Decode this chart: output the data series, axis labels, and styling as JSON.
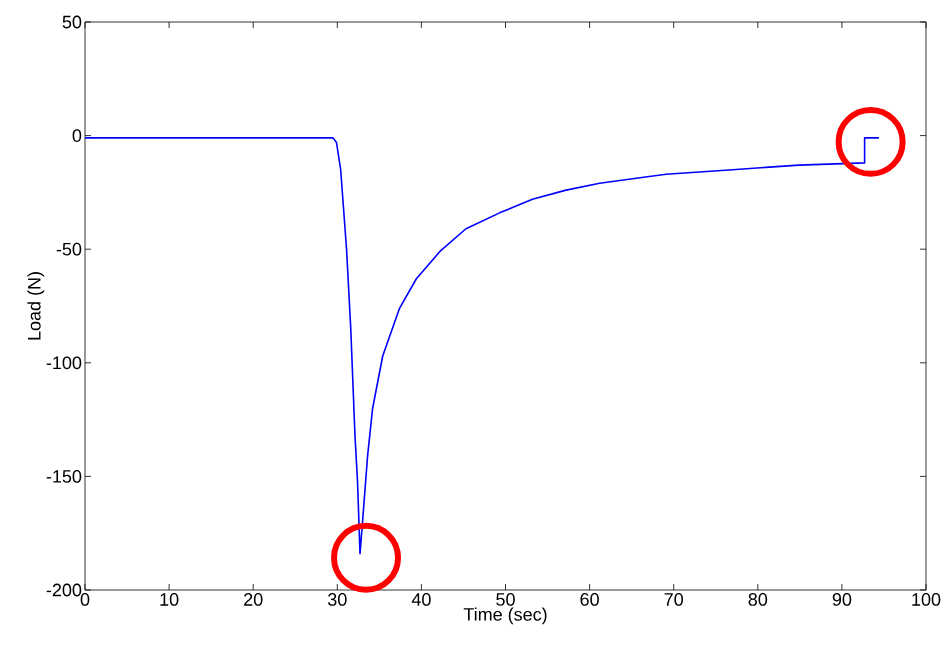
{
  "chart_data": {
    "type": "line",
    "xlabel": "Time (sec)",
    "ylabel": "Load (N)",
    "xlim": [
      0,
      100
    ],
    "ylim": [
      -200,
      50
    ],
    "xticks": [
      0,
      10,
      20,
      30,
      40,
      50,
      60,
      70,
      80,
      90,
      100
    ],
    "yticks": [
      -200,
      -150,
      -100,
      -50,
      0,
      50
    ],
    "grid": false,
    "marker": "none",
    "line_style": "solid",
    "series": [
      {
        "color": "#0000ff",
        "x": [
          0,
          5,
          10,
          15,
          20,
          25,
          29.5,
          29.9,
          30.4,
          31.1,
          31.6,
          32.1,
          32.4,
          32.7,
          33.0,
          33.6,
          34.2,
          35.4,
          37.4,
          39.4,
          42.2,
          45.3,
          49.3,
          53.2,
          57.2,
          61.2,
          65.1,
          69.1,
          77.0,
          84.9,
          92.7,
          92.7,
          94.4
        ],
        "values": [
          -1,
          -1,
          -1,
          -1,
          -1,
          -1,
          -1,
          -3,
          -15,
          -50,
          -85,
          -132,
          -152,
          -184,
          -170,
          -141,
          -120,
          -97,
          -76,
          -63,
          -51,
          -41,
          -34,
          -28,
          -24,
          -21,
          -19,
          -17,
          -15,
          -13,
          -12,
          -1,
          -1
        ]
      }
    ]
  }
}
